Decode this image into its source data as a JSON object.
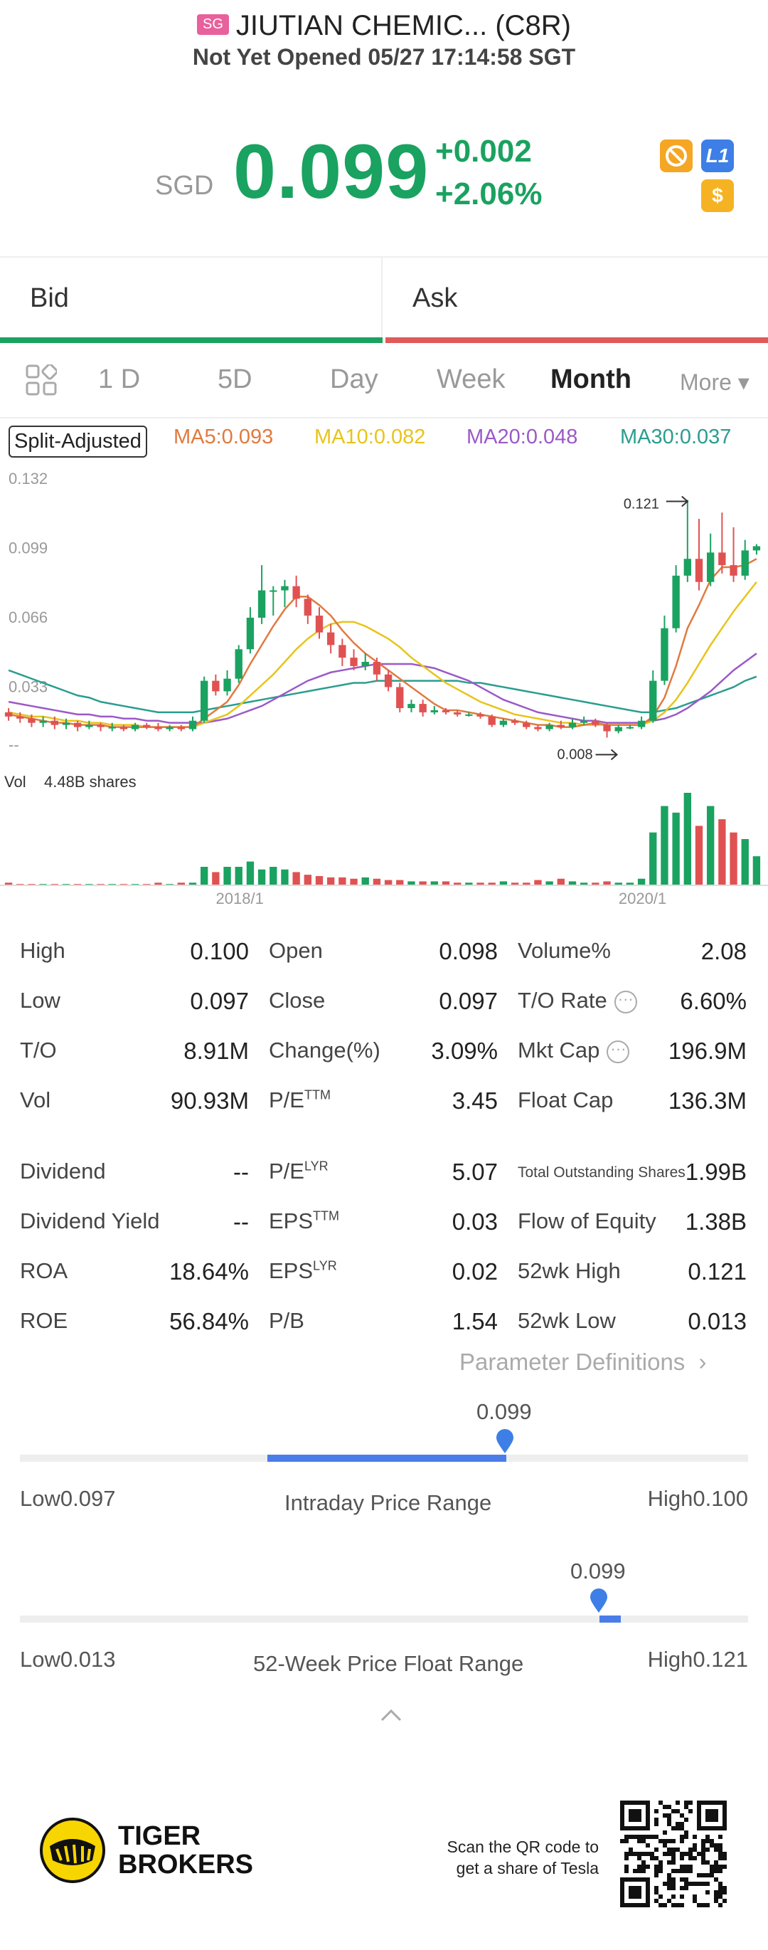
{
  "header": {
    "market_badge": "SG",
    "title": "JIUTIAN CHEMIC... (C8R)",
    "status": "Not Yet Opened 05/27 17:14:58 SGT"
  },
  "quote": {
    "currency": "SGD",
    "price": "0.099",
    "change": "+0.002",
    "change_pct": "+2.06%",
    "icons": [
      "trade-icon",
      "level1-icon",
      "dollar-icon"
    ],
    "level_label": "L1",
    "dollar_label": "$"
  },
  "bidask": {
    "bid_label": "Bid",
    "ask_label": "Ask"
  },
  "tabs": [
    "1 D",
    "5D",
    "Day",
    "Week",
    "Month"
  ],
  "more_label": "More ▾",
  "active_tab": "Month",
  "indicators": {
    "split_label": "Split-Adjusted",
    "ma5": "MA5:0.093",
    "ma10": "MA10:0.082",
    "ma20": "MA20:0.048",
    "ma30": "MA30:0.037",
    "colors": {
      "ma5": "#e07a3f",
      "ma10": "#e8c41a",
      "ma20": "#9b59c7",
      "ma30": "#2a9d8f",
      "up": "#1aa260",
      "down": "#e05252"
    }
  },
  "chart_data": {
    "type": "candlestick",
    "y_ticks": [
      "0.132",
      "0.099",
      "0.066",
      "0.033",
      "--"
    ],
    "x_ticks": [
      "2018/1",
      "2020/1"
    ],
    "high_marker": "0.121",
    "low_marker": "0.008",
    "volume_label": "Vol",
    "volume_value": "4.48B shares",
    "candles": [
      {
        "o": 0.02,
        "c": 0.018,
        "h": 0.022,
        "l": 0.016
      },
      {
        "o": 0.018,
        "c": 0.017,
        "h": 0.02,
        "l": 0.015
      },
      {
        "o": 0.017,
        "c": 0.015,
        "h": 0.019,
        "l": 0.013
      },
      {
        "o": 0.015,
        "c": 0.016,
        "h": 0.018,
        "l": 0.013
      },
      {
        "o": 0.016,
        "c": 0.014,
        "h": 0.018,
        "l": 0.012
      },
      {
        "o": 0.014,
        "c": 0.015,
        "h": 0.017,
        "l": 0.012
      },
      {
        "o": 0.015,
        "c": 0.013,
        "h": 0.016,
        "l": 0.011
      },
      {
        "o": 0.013,
        "c": 0.014,
        "h": 0.016,
        "l": 0.012
      },
      {
        "o": 0.014,
        "c": 0.013,
        "h": 0.015,
        "l": 0.011
      },
      {
        "o": 0.013,
        "c": 0.013,
        "h": 0.015,
        "l": 0.011
      },
      {
        "o": 0.013,
        "c": 0.012,
        "h": 0.014,
        "l": 0.011
      },
      {
        "o": 0.012,
        "c": 0.014,
        "h": 0.015,
        "l": 0.011
      },
      {
        "o": 0.014,
        "c": 0.013,
        "h": 0.015,
        "l": 0.012
      },
      {
        "o": 0.013,
        "c": 0.012,
        "h": 0.015,
        "l": 0.011
      },
      {
        "o": 0.012,
        "c": 0.013,
        "h": 0.014,
        "l": 0.011
      },
      {
        "o": 0.013,
        "c": 0.012,
        "h": 0.014,
        "l": 0.011
      },
      {
        "o": 0.012,
        "c": 0.016,
        "h": 0.018,
        "l": 0.011
      },
      {
        "o": 0.016,
        "c": 0.035,
        "h": 0.037,
        "l": 0.015
      },
      {
        "o": 0.035,
        "c": 0.03,
        "h": 0.038,
        "l": 0.028
      },
      {
        "o": 0.03,
        "c": 0.036,
        "h": 0.04,
        "l": 0.028
      },
      {
        "o": 0.036,
        "c": 0.05,
        "h": 0.052,
        "l": 0.034
      },
      {
        "o": 0.05,
        "c": 0.065,
        "h": 0.07,
        "l": 0.048
      },
      {
        "o": 0.065,
        "c": 0.078,
        "h": 0.09,
        "l": 0.062
      },
      {
        "o": 0.078,
        "c": 0.078,
        "h": 0.08,
        "l": 0.066
      },
      {
        "o": 0.078,
        "c": 0.08,
        "h": 0.083,
        "l": 0.07
      },
      {
        "o": 0.08,
        "c": 0.074,
        "h": 0.085,
        "l": 0.07
      },
      {
        "o": 0.074,
        "c": 0.066,
        "h": 0.076,
        "l": 0.062
      },
      {
        "o": 0.066,
        "c": 0.058,
        "h": 0.07,
        "l": 0.055
      },
      {
        "o": 0.058,
        "c": 0.052,
        "h": 0.062,
        "l": 0.048
      },
      {
        "o": 0.052,
        "c": 0.046,
        "h": 0.055,
        "l": 0.042
      },
      {
        "o": 0.046,
        "c": 0.042,
        "h": 0.05,
        "l": 0.04
      },
      {
        "o": 0.042,
        "c": 0.044,
        "h": 0.048,
        "l": 0.04
      },
      {
        "o": 0.044,
        "c": 0.038,
        "h": 0.046,
        "l": 0.035
      },
      {
        "o": 0.038,
        "c": 0.032,
        "h": 0.04,
        "l": 0.03
      },
      {
        "o": 0.032,
        "c": 0.022,
        "h": 0.034,
        "l": 0.02
      },
      {
        "o": 0.022,
        "c": 0.024,
        "h": 0.026,
        "l": 0.02
      },
      {
        "o": 0.024,
        "c": 0.02,
        "h": 0.026,
        "l": 0.018
      },
      {
        "o": 0.02,
        "c": 0.021,
        "h": 0.023,
        "l": 0.019
      },
      {
        "o": 0.021,
        "c": 0.02,
        "h": 0.022,
        "l": 0.019
      },
      {
        "o": 0.02,
        "c": 0.019,
        "h": 0.021,
        "l": 0.018
      },
      {
        "o": 0.019,
        "c": 0.019,
        "h": 0.02,
        "l": 0.018
      },
      {
        "o": 0.019,
        "c": 0.018,
        "h": 0.02,
        "l": 0.017
      },
      {
        "o": 0.018,
        "c": 0.014,
        "h": 0.019,
        "l": 0.013
      },
      {
        "o": 0.014,
        "c": 0.016,
        "h": 0.017,
        "l": 0.013
      },
      {
        "o": 0.016,
        "c": 0.015,
        "h": 0.017,
        "l": 0.014
      },
      {
        "o": 0.015,
        "c": 0.013,
        "h": 0.016,
        "l": 0.012
      },
      {
        "o": 0.013,
        "c": 0.012,
        "h": 0.014,
        "l": 0.011
      },
      {
        "o": 0.012,
        "c": 0.014,
        "h": 0.015,
        "l": 0.011
      },
      {
        "o": 0.014,
        "c": 0.013,
        "h": 0.016,
        "l": 0.012
      },
      {
        "o": 0.013,
        "c": 0.015,
        "h": 0.017,
        "l": 0.012
      },
      {
        "o": 0.015,
        "c": 0.016,
        "h": 0.018,
        "l": 0.014
      },
      {
        "o": 0.016,
        "c": 0.014,
        "h": 0.017,
        "l": 0.013
      },
      {
        "o": 0.014,
        "c": 0.011,
        "h": 0.015,
        "l": 0.008
      },
      {
        "o": 0.011,
        "c": 0.013,
        "h": 0.014,
        "l": 0.01
      },
      {
        "o": 0.013,
        "c": 0.013,
        "h": 0.014,
        "l": 0.012
      },
      {
        "o": 0.013,
        "c": 0.016,
        "h": 0.018,
        "l": 0.012
      },
      {
        "o": 0.016,
        "c": 0.035,
        "h": 0.04,
        "l": 0.015
      },
      {
        "o": 0.035,
        "c": 0.06,
        "h": 0.066,
        "l": 0.033
      },
      {
        "o": 0.06,
        "c": 0.085,
        "h": 0.09,
        "l": 0.058
      },
      {
        "o": 0.085,
        "c": 0.093,
        "h": 0.121,
        "l": 0.082
      },
      {
        "o": 0.093,
        "c": 0.082,
        "h": 0.112,
        "l": 0.078
      },
      {
        "o": 0.082,
        "c": 0.096,
        "h": 0.105,
        "l": 0.08
      },
      {
        "o": 0.096,
        "c": 0.09,
        "h": 0.115,
        "l": 0.086
      },
      {
        "o": 0.09,
        "c": 0.085,
        "h": 0.108,
        "l": 0.082
      },
      {
        "o": 0.085,
        "c": 0.097,
        "h": 0.102,
        "l": 0.083
      },
      {
        "o": 0.097,
        "c": 0.099,
        "h": 0.1,
        "l": 0.095
      }
    ],
    "volumes": [
      2,
      1,
      1,
      1,
      1,
      1,
      1,
      1,
      1,
      1,
      1,
      1,
      1,
      2,
      1,
      2,
      2,
      14,
      10,
      14,
      14,
      18,
      12,
      14,
      12,
      10,
      8,
      7,
      6,
      6,
      5,
      6,
      5,
      4,
      4,
      3,
      3,
      3,
      3,
      2,
      2,
      2,
      2,
      3,
      2,
      2,
      4,
      3,
      5,
      3,
      2,
      2,
      3,
      2,
      2,
      5,
      40,
      60,
      55,
      70,
      45,
      60,
      50,
      40,
      35,
      22
    ],
    "ma5": [
      0.019,
      0.018,
      0.017,
      0.016,
      0.015,
      0.015,
      0.014,
      0.014,
      0.014,
      0.013,
      0.013,
      0.013,
      0.013,
      0.013,
      0.013,
      0.013,
      0.013,
      0.017,
      0.021,
      0.025,
      0.033,
      0.043,
      0.052,
      0.061,
      0.069,
      0.075,
      0.075,
      0.071,
      0.066,
      0.059,
      0.053,
      0.048,
      0.044,
      0.04,
      0.036,
      0.032,
      0.028,
      0.024,
      0.021,
      0.021,
      0.02,
      0.019,
      0.018,
      0.017,
      0.016,
      0.015,
      0.014,
      0.014,
      0.013,
      0.013,
      0.014,
      0.015,
      0.014,
      0.014,
      0.014,
      0.014,
      0.018,
      0.027,
      0.042,
      0.06,
      0.071,
      0.083,
      0.089,
      0.089,
      0.09,
      0.093
    ],
    "ma10": [
      0.02,
      0.019,
      0.018,
      0.018,
      0.017,
      0.016,
      0.016,
      0.015,
      0.015,
      0.014,
      0.014,
      0.014,
      0.013,
      0.013,
      0.013,
      0.013,
      0.013,
      0.015,
      0.017,
      0.019,
      0.023,
      0.028,
      0.033,
      0.038,
      0.044,
      0.05,
      0.055,
      0.059,
      0.062,
      0.063,
      0.063,
      0.061,
      0.058,
      0.055,
      0.051,
      0.046,
      0.042,
      0.038,
      0.034,
      0.031,
      0.028,
      0.025,
      0.023,
      0.021,
      0.019,
      0.018,
      0.017,
      0.016,
      0.015,
      0.015,
      0.014,
      0.014,
      0.014,
      0.014,
      0.014,
      0.014,
      0.016,
      0.02,
      0.026,
      0.034,
      0.043,
      0.052,
      0.06,
      0.068,
      0.075,
      0.082
    ],
    "ma20": [
      0.025,
      0.024,
      0.023,
      0.022,
      0.021,
      0.02,
      0.019,
      0.019,
      0.018,
      0.018,
      0.017,
      0.017,
      0.016,
      0.016,
      0.015,
      0.015,
      0.015,
      0.015,
      0.016,
      0.017,
      0.019,
      0.021,
      0.023,
      0.026,
      0.029,
      0.032,
      0.035,
      0.037,
      0.039,
      0.04,
      0.041,
      0.042,
      0.043,
      0.043,
      0.043,
      0.043,
      0.042,
      0.041,
      0.039,
      0.037,
      0.035,
      0.032,
      0.029,
      0.026,
      0.024,
      0.022,
      0.02,
      0.019,
      0.018,
      0.017,
      0.016,
      0.016,
      0.015,
      0.015,
      0.015,
      0.015,
      0.016,
      0.017,
      0.019,
      0.022,
      0.026,
      0.03,
      0.035,
      0.04,
      0.044,
      0.048
    ],
    "ma30": [
      0.04,
      0.038,
      0.036,
      0.034,
      0.032,
      0.03,
      0.028,
      0.027,
      0.025,
      0.024,
      0.023,
      0.022,
      0.021,
      0.02,
      0.02,
      0.02,
      0.02,
      0.021,
      0.022,
      0.023,
      0.024,
      0.025,
      0.026,
      0.027,
      0.028,
      0.029,
      0.03,
      0.031,
      0.032,
      0.033,
      0.034,
      0.034,
      0.035,
      0.035,
      0.035,
      0.035,
      0.035,
      0.035,
      0.035,
      0.035,
      0.034,
      0.034,
      0.033,
      0.032,
      0.031,
      0.03,
      0.029,
      0.028,
      0.027,
      0.026,
      0.025,
      0.024,
      0.023,
      0.022,
      0.021,
      0.02,
      0.02,
      0.021,
      0.022,
      0.024,
      0.026,
      0.028,
      0.03,
      0.032,
      0.035,
      0.037
    ]
  },
  "stats": {
    "col1": [
      {
        "label": "High",
        "value": "0.100"
      },
      {
        "label": "Low",
        "value": "0.097"
      },
      {
        "label": "T/O",
        "value": "8.91M"
      },
      {
        "label": "Vol",
        "value": "90.93M"
      },
      {
        "label": "Dividend",
        "value": "--"
      },
      {
        "label": "Dividend Yield",
        "value": "--"
      },
      {
        "label": "ROA",
        "value": "18.64%"
      },
      {
        "label": "ROE",
        "value": "56.84%"
      }
    ],
    "col2": [
      {
        "label": "Open",
        "value": "0.098"
      },
      {
        "label": "Close",
        "value": "0.097"
      },
      {
        "label": "Change(%)",
        "value": "3.09%"
      },
      {
        "label": "P/E",
        "sup": "TTM",
        "value": "3.45"
      },
      {
        "label": "P/E",
        "sup": "LYR",
        "value": "5.07"
      },
      {
        "label": "EPS",
        "sup": "TTM",
        "value": "0.03"
      },
      {
        "label": "EPS",
        "sup": "LYR",
        "value": "0.02"
      },
      {
        "label": "P/B",
        "value": "1.54"
      }
    ],
    "col3": [
      {
        "label": "Volume%",
        "value": "2.08"
      },
      {
        "label": "T/O Rate",
        "value": "6.60%"
      },
      {
        "label": "Mkt Cap",
        "value": "196.9M"
      },
      {
        "label": "Float Cap",
        "value": "136.3M"
      },
      {
        "label": "Total Outstanding Shares",
        "value": "1.99B"
      },
      {
        "label": "Flow of Equity",
        "value": "1.38B"
      },
      {
        "label": "52wk High",
        "value": "0.121"
      },
      {
        "label": "52wk Low",
        "value": "0.013"
      }
    ]
  },
  "param_defs": "Parameter Definitions",
  "intraday": {
    "current": "0.099",
    "low_label": "Low",
    "low": "0.097",
    "high_label": "High",
    "high": "0.100",
    "title": "Intraday Price Range",
    "fill_start": 0.34,
    "fill_end": 0.668
  },
  "week52": {
    "current": "0.099",
    "low_label": "Low",
    "low": "0.013",
    "high_label": "High",
    "high": "0.121",
    "title": "52-Week Price Float Range",
    "fill_pos": 0.796
  },
  "footer": {
    "brand_line1": "TIGER",
    "brand_line2": "BROKERS",
    "qr_text1": "Scan the QR code to",
    "qr_text2": "get a share of Tesla"
  }
}
